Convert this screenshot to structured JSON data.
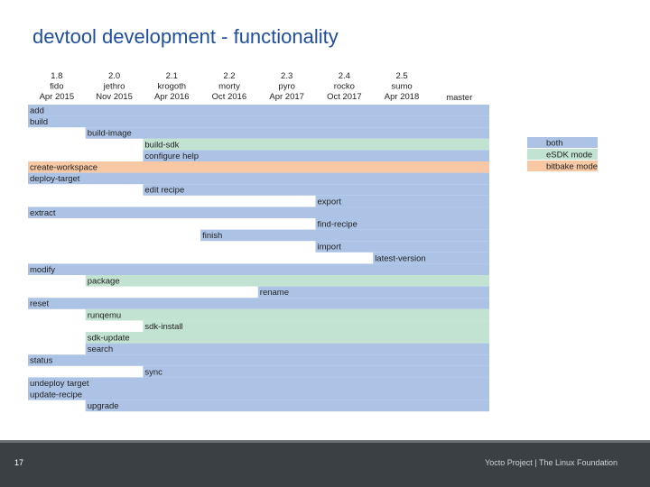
{
  "slide": {
    "title": "devtool development - functionality",
    "number": "17",
    "footer": "Yocto Project | The Linux Foundation"
  },
  "colors": {
    "both": "#adc3e6",
    "esdk": "#c3e3d2",
    "bitbake": "#f8c8a4"
  },
  "releases": [
    {
      "version": "1.8",
      "name": "fido",
      "date": "Apr 2015"
    },
    {
      "version": "2.0",
      "name": "jethro",
      "date": "Nov 2015"
    },
    {
      "version": "2.1",
      "name": "krogoth",
      "date": "Apr 2016"
    },
    {
      "version": "2.2",
      "name": "morty",
      "date": "Oct 2016"
    },
    {
      "version": "2.3",
      "name": "pyro",
      "date": "Apr 2017"
    },
    {
      "version": "2.4",
      "name": "rocko",
      "date": "Oct 2017"
    },
    {
      "version": "2.5",
      "name": "sumo",
      "date": "Apr 2018"
    },
    {
      "version": "",
      "name": "master",
      "date": ""
    }
  ],
  "legend": [
    {
      "label": "both",
      "mode": "both"
    },
    {
      "label": "eSDK mode",
      "mode": "esdk"
    },
    {
      "label": "bitbake mode",
      "mode": "bitbake"
    }
  ],
  "commands": [
    {
      "name": "add",
      "start_release": 0,
      "mode": "both"
    },
    {
      "name": "build",
      "start_release": 0,
      "mode": "both"
    },
    {
      "name": "build-image",
      "start_release": 1,
      "mode": "both"
    },
    {
      "name": "build-sdk",
      "start_release": 2,
      "mode": "esdk"
    },
    {
      "name": "configure help",
      "start_release": 2,
      "mode": "both"
    },
    {
      "name": "create-workspace",
      "start_release": 0,
      "mode": "bitbake"
    },
    {
      "name": "deploy-target",
      "start_release": 0,
      "mode": "both"
    },
    {
      "name": "edit recipe",
      "start_release": 2,
      "mode": "both"
    },
    {
      "name": "export",
      "start_release": 5,
      "mode": "both"
    },
    {
      "name": "extract",
      "start_release": 0,
      "mode": "both"
    },
    {
      "name": "find-recipe",
      "start_release": 5,
      "mode": "both"
    },
    {
      "name": "finish",
      "start_release": 3,
      "mode": "both"
    },
    {
      "name": "import",
      "start_release": 5,
      "mode": "both"
    },
    {
      "name": "latest-version",
      "start_release": 6,
      "mode": "both"
    },
    {
      "name": "modify",
      "start_release": 0,
      "mode": "both"
    },
    {
      "name": "package",
      "start_release": 1,
      "mode": "esdk"
    },
    {
      "name": "rename",
      "start_release": 4,
      "mode": "both"
    },
    {
      "name": "reset",
      "start_release": 0,
      "mode": "both"
    },
    {
      "name": "runqemu",
      "start_release": 1,
      "mode": "esdk"
    },
    {
      "name": "sdk-install",
      "start_release": 2,
      "mode": "esdk"
    },
    {
      "name": "sdk-update",
      "start_release": 1,
      "mode": "esdk"
    },
    {
      "name": "search",
      "start_release": 1,
      "mode": "both"
    },
    {
      "name": "status",
      "start_release": 0,
      "mode": "both"
    },
    {
      "name": "sync",
      "start_release": 2,
      "mode": "both"
    },
    {
      "name": "undeploy target",
      "start_release": 0,
      "mode": "both"
    },
    {
      "name": "update-recipe",
      "start_release": 0,
      "mode": "both"
    },
    {
      "name": "upgrade",
      "start_release": 1,
      "mode": "both"
    }
  ]
}
